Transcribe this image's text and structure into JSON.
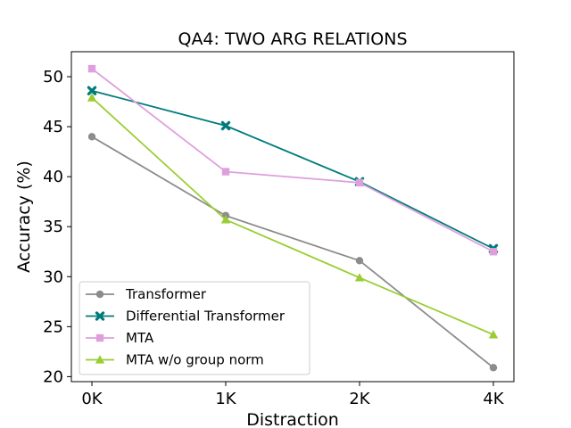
{
  "chart_data": {
    "type": "line",
    "title": "QA4: TWO ARG RELATIONS",
    "xlabel": "Distraction",
    "ylabel": "Accuracy (%)",
    "categories": [
      "0K",
      "1K",
      "2K",
      "4K"
    ],
    "ylim": [
      19.5,
      52.5
    ],
    "yticks": [
      20,
      25,
      30,
      35,
      40,
      45,
      50
    ],
    "grid": false,
    "legend_position": "lower-left",
    "series": [
      {
        "name": "Transformer",
        "color": "#8c8c8c",
        "marker": "circle",
        "values": [
          44.0,
          36.1,
          31.6,
          20.9
        ]
      },
      {
        "name": "Differential Transformer",
        "color": "#007b7b",
        "marker": "x",
        "values": [
          48.6,
          45.1,
          39.5,
          32.8
        ]
      },
      {
        "name": "MTA",
        "color": "#dda0dd",
        "marker": "square",
        "values": [
          50.8,
          40.5,
          39.4,
          32.5
        ]
      },
      {
        "name": "MTA w/o group norm",
        "color": "#9acd32",
        "marker": "triangle",
        "values": [
          47.9,
          35.7,
          29.9,
          24.2
        ]
      }
    ]
  }
}
